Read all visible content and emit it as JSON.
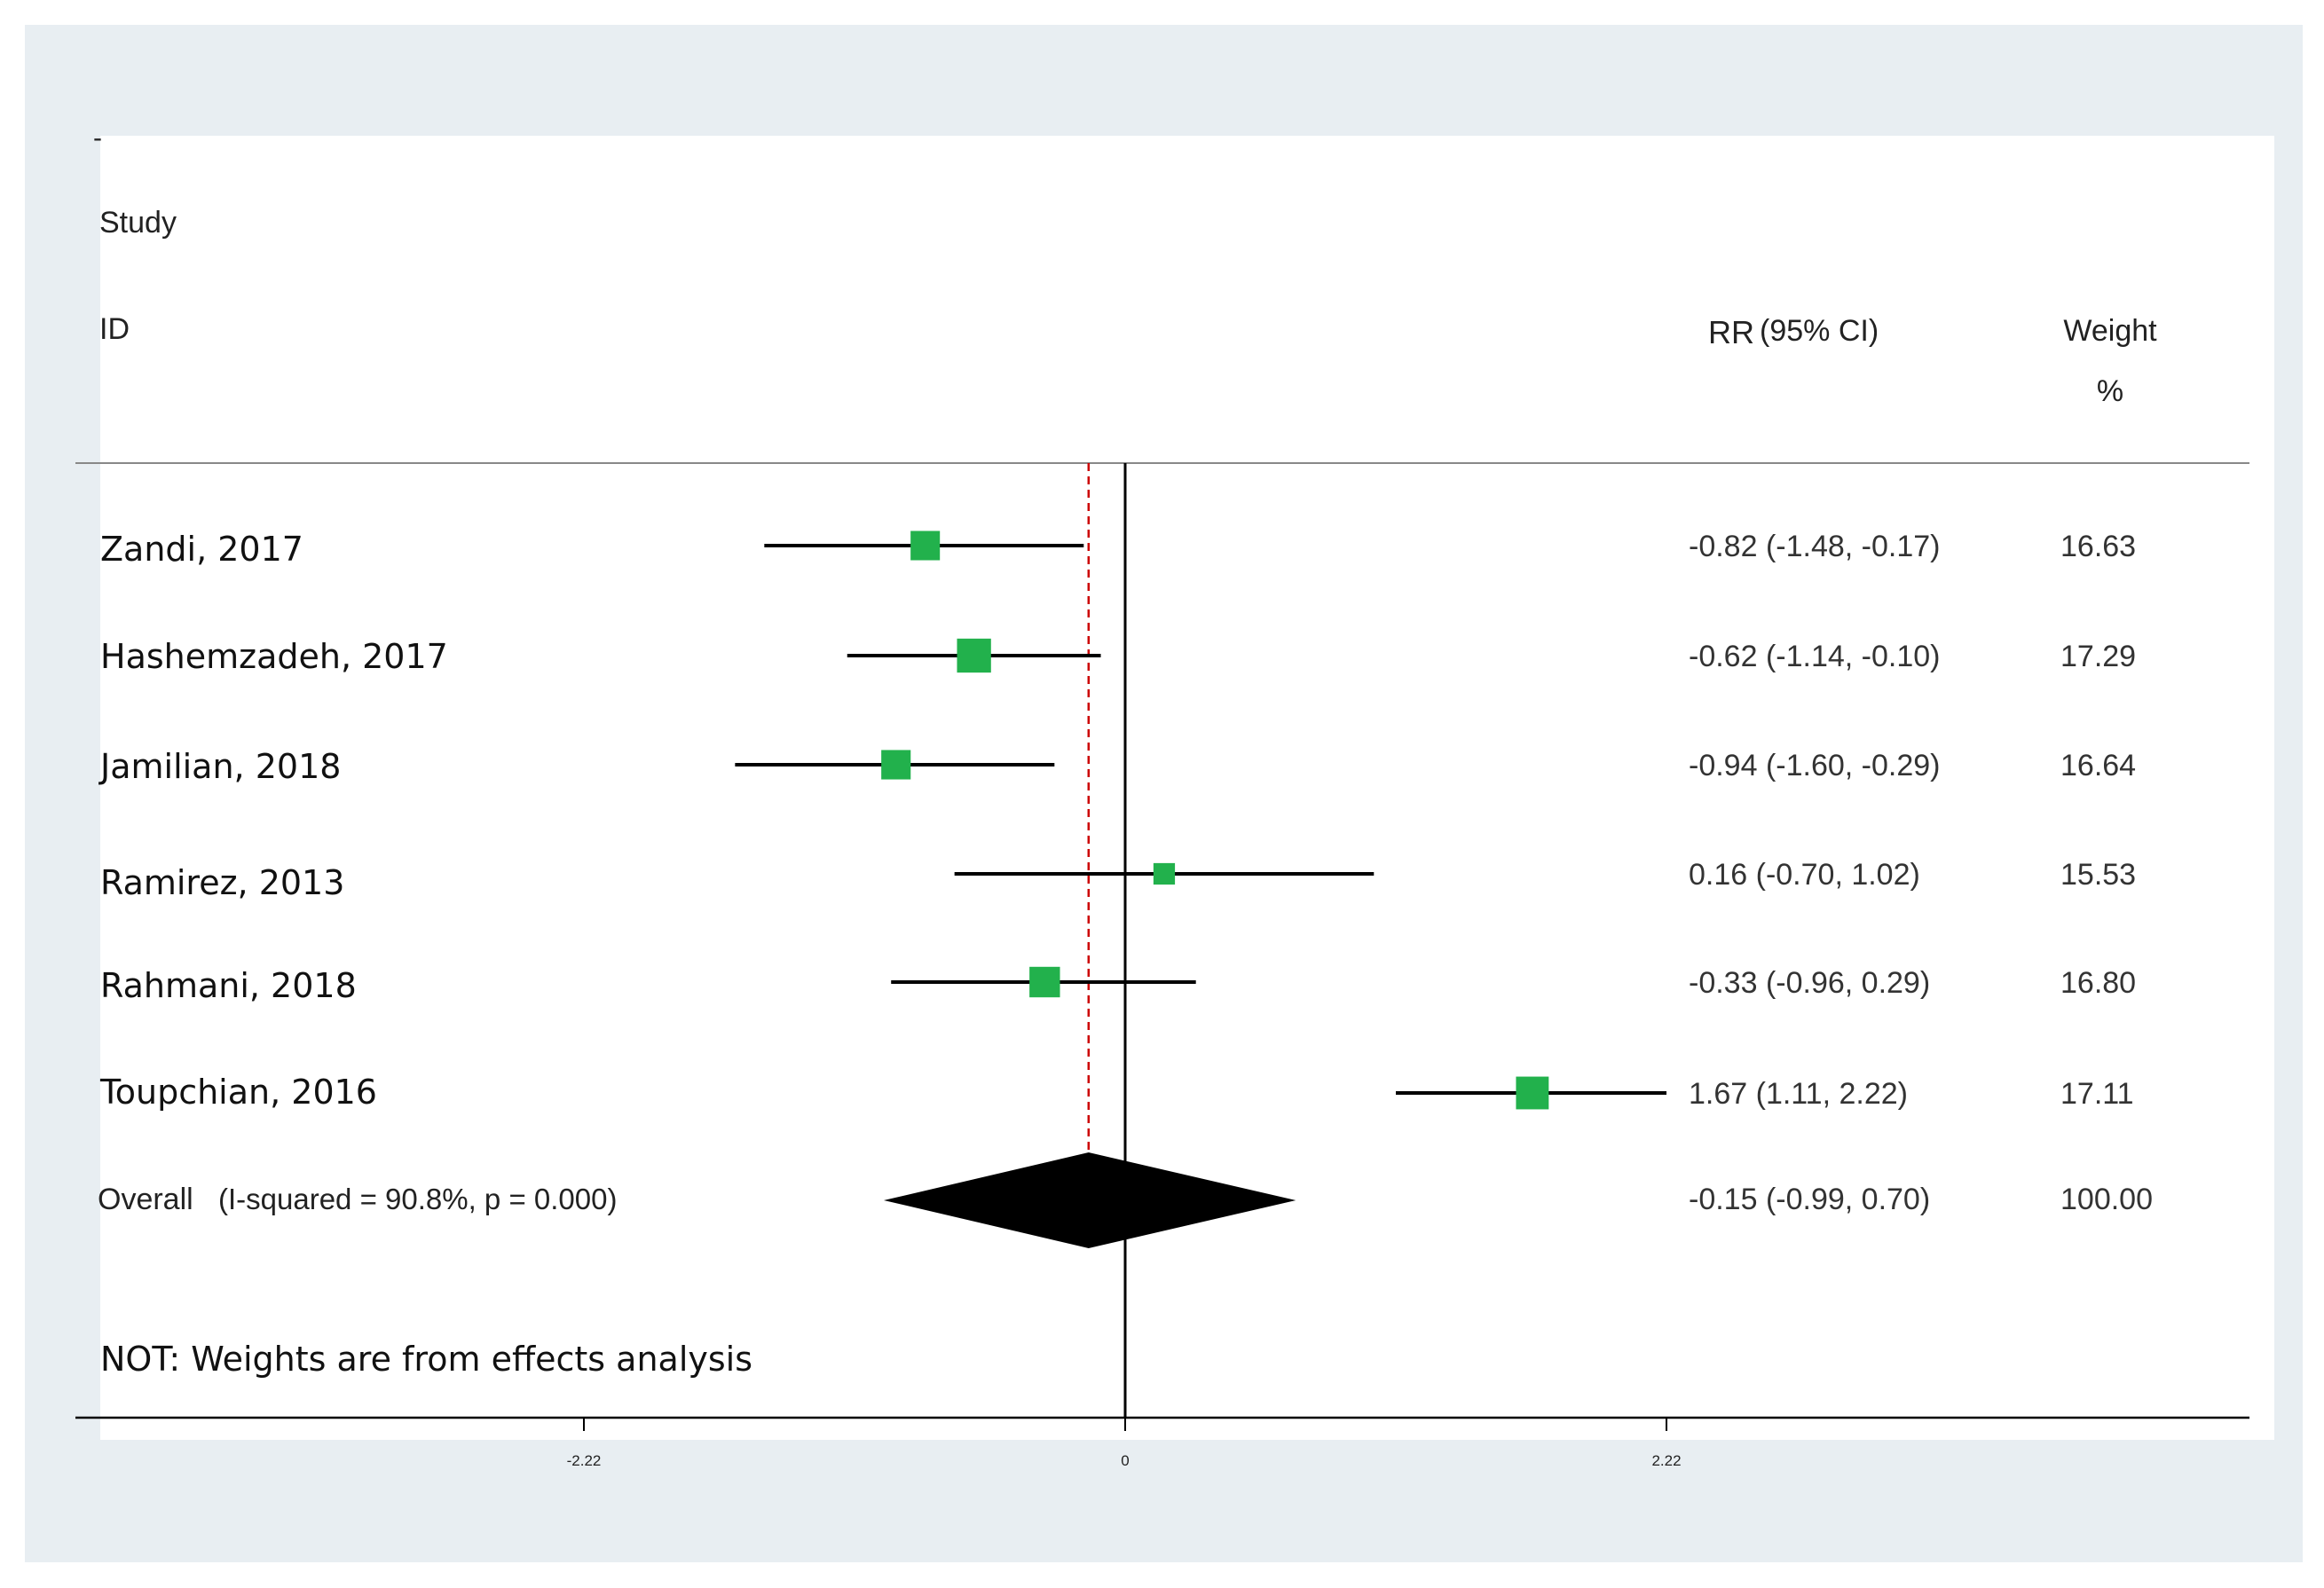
{
  "chart_data": {
    "type": "forest",
    "top_mark": "-",
    "header": {
      "study": "Study",
      "id": "ID",
      "estimate_label": "RR",
      "ci_label": "(95% CI)",
      "weight_label": "Weight",
      "weight_unit": "%"
    },
    "x_ticks": [
      {
        "value": -2.22,
        "label": "-2.22"
      },
      {
        "value": 0,
        "label": "0"
      },
      {
        "value": 2.22,
        "label": "2.22"
      }
    ],
    "xlim": [
      -4.4,
      4.5
    ],
    "reference_line": 0,
    "pooled_line": -0.15,
    "studies": [
      {
        "label": "Zandi, 2017",
        "estimate": -0.82,
        "lower": -1.48,
        "upper": -0.17,
        "ci_text": "-0.82 (-1.48, -0.17)",
        "weight": 16.63,
        "weight_text": "16.63"
      },
      {
        "label": "Hashemzadeh, 2017",
        "estimate": -0.62,
        "lower": -1.14,
        "upper": -0.1,
        "ci_text": "-0.62 (-1.14, -0.10)",
        "weight": 17.29,
        "weight_text": "17.29"
      },
      {
        "label": "Jamilian, 2018",
        "estimate": -0.94,
        "lower": -1.6,
        "upper": -0.29,
        "ci_text": "-0.94 (-1.60, -0.29)",
        "weight": 16.64,
        "weight_text": "16.64"
      },
      {
        "label": "Ramirez, 2013",
        "estimate": 0.16,
        "lower": -0.7,
        "upper": 1.02,
        "ci_text": "0.16 (-0.70, 1.02)",
        "weight": 15.53,
        "weight_text": "15.53"
      },
      {
        "label": "Rahmani, 2018",
        "estimate": -0.33,
        "lower": -0.96,
        "upper": 0.29,
        "ci_text": "-0.33 (-0.96, 0.29)",
        "weight": 16.8,
        "weight_text": "16.80"
      },
      {
        "label": "Toupchian, 2016",
        "estimate": 1.67,
        "lower": 1.11,
        "upper": 2.22,
        "ci_text": "1.67 (1.11, 2.22)",
        "weight": 17.11,
        "weight_text": "17.11"
      }
    ],
    "overall": {
      "label": "Overall",
      "heterogeneity": "(I-squared = 90.8%, p = 0.000)",
      "estimate": -0.15,
      "lower": -0.99,
      "upper": 0.7,
      "ci_text": "-0.15 (-0.99, 0.70)",
      "weight_text": "100.00"
    },
    "note": "NOT: Weights are from effects analysis",
    "colors": {
      "marker": "#22b14c",
      "pooled_line": "#cc0000",
      "diamond": "#000000",
      "ci_line": "#000000"
    }
  }
}
